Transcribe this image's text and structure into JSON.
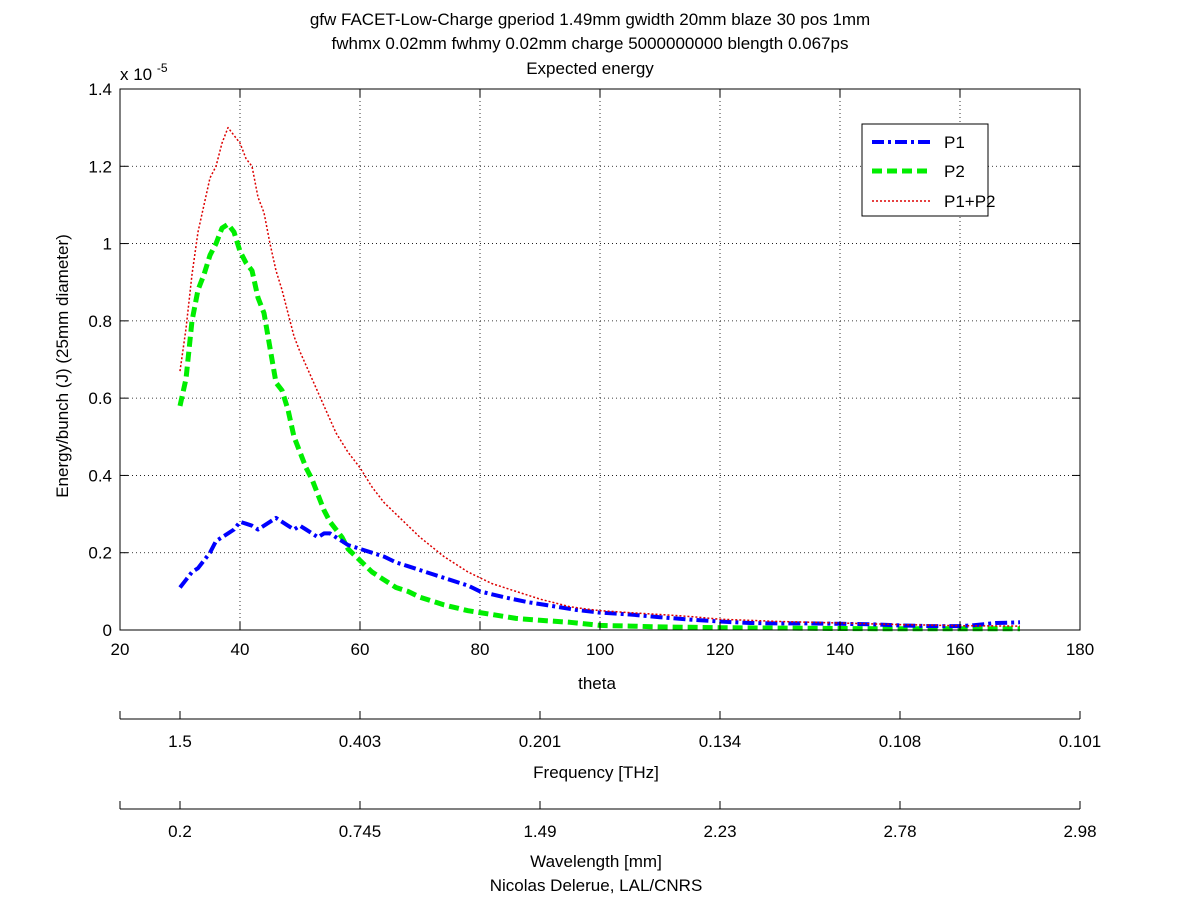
{
  "chart_data": {
    "type": "line",
    "title_lines": [
      "gfw FACET-Low-Charge gperiod 1.49mm gwidth 20mm blaze 30 pos 1mm",
      "fwhmx 0.02mm fwhmy 0.02mm charge 5000000000 blength 0.067ps",
      "Expected energy"
    ],
    "xlabel": "theta",
    "ylabel": "Energy/bunch (J) (25mm diameter)",
    "y_multiplier": {
      "base": "x 10",
      "exponent": "-5"
    },
    "xlim": [
      20,
      180
    ],
    "ylim": [
      0,
      1.4
    ],
    "x_ticks": [
      "20",
      "40",
      "60",
      "80",
      "100",
      "120",
      "140",
      "160",
      "180"
    ],
    "y_ticks": [
      "0",
      "0.2",
      "0.4",
      "0.6",
      "0.8",
      "1",
      "1.2",
      "1.4"
    ],
    "grid": true,
    "legend_position": "top-right",
    "series": [
      {
        "name": "P1",
        "color": "#0000ff",
        "style": "dashdot",
        "x": [
          30,
          31,
          32,
          33,
          34,
          35,
          36,
          37,
          38,
          39,
          40,
          41,
          42,
          43,
          44,
          45,
          46,
          47,
          48,
          49,
          50,
          51,
          52,
          53,
          54,
          55,
          56,
          57,
          58,
          59,
          60,
          62,
          64,
          66,
          68,
          70,
          72,
          75,
          78,
          80,
          84,
          88,
          92,
          96,
          100,
          105,
          110,
          115,
          120,
          125,
          130,
          135,
          140,
          145,
          150,
          155,
          160,
          162,
          164,
          166,
          168,
          170
        ],
        "y": [
          0.11,
          0.13,
          0.15,
          0.16,
          0.18,
          0.2,
          0.23,
          0.24,
          0.25,
          0.26,
          0.28,
          0.275,
          0.27,
          0.26,
          0.27,
          0.28,
          0.29,
          0.28,
          0.27,
          0.26,
          0.27,
          0.26,
          0.25,
          0.24,
          0.25,
          0.25,
          0.24,
          0.23,
          0.22,
          0.215,
          0.21,
          0.2,
          0.19,
          0.175,
          0.165,
          0.155,
          0.145,
          0.13,
          0.115,
          0.1,
          0.085,
          0.072,
          0.062,
          0.052,
          0.045,
          0.04,
          0.033,
          0.027,
          0.022,
          0.018,
          0.017,
          0.017,
          0.016,
          0.015,
          0.012,
          0.01,
          0.01,
          0.012,
          0.015,
          0.018,
          0.019,
          0.02
        ]
      },
      {
        "name": "P2",
        "color": "#00ee00",
        "style": "dashed",
        "x": [
          30,
          31,
          32,
          33,
          34,
          35,
          36,
          37,
          38,
          39,
          40,
          41,
          42,
          43,
          44,
          45,
          46,
          47,
          48,
          49,
          50,
          51,
          52,
          53,
          54,
          55,
          56,
          57,
          58,
          60,
          62,
          64,
          66,
          68,
          70,
          74,
          78,
          82,
          86,
          90,
          95,
          100,
          105,
          110,
          115,
          120,
          130,
          140,
          150,
          160,
          170
        ],
        "y": [
          0.58,
          0.65,
          0.8,
          0.88,
          0.92,
          0.97,
          1.0,
          1.04,
          1.05,
          1.03,
          0.98,
          0.95,
          0.93,
          0.86,
          0.82,
          0.73,
          0.64,
          0.62,
          0.57,
          0.5,
          0.46,
          0.42,
          0.39,
          0.35,
          0.31,
          0.28,
          0.26,
          0.24,
          0.21,
          0.18,
          0.15,
          0.13,
          0.11,
          0.1,
          0.085,
          0.065,
          0.05,
          0.04,
          0.03,
          0.025,
          0.02,
          0.012,
          0.01,
          0.008,
          0.007,
          0.006,
          0.005,
          0.004,
          0.003,
          0.003,
          0.003
        ]
      },
      {
        "name": "P1+P2",
        "color": "#dd0000",
        "style": "dotted",
        "x": [
          30,
          31,
          32,
          33,
          34,
          35,
          36,
          37,
          38,
          39,
          40,
          41,
          42,
          43,
          44,
          45,
          46,
          47,
          48,
          49,
          50,
          52,
          54,
          56,
          58,
          60,
          62,
          64,
          66,
          68,
          70,
          74,
          78,
          82,
          86,
          90,
          95,
          100,
          105,
          110,
          115,
          120,
          130,
          140,
          150,
          160,
          170
        ],
        "y": [
          0.67,
          0.78,
          0.92,
          1.03,
          1.1,
          1.17,
          1.2,
          1.26,
          1.3,
          1.28,
          1.26,
          1.22,
          1.2,
          1.12,
          1.08,
          1.0,
          0.93,
          0.88,
          0.82,
          0.76,
          0.72,
          0.65,
          0.58,
          0.51,
          0.46,
          0.42,
          0.37,
          0.33,
          0.3,
          0.27,
          0.24,
          0.19,
          0.15,
          0.12,
          0.1,
          0.08,
          0.06,
          0.05,
          0.045,
          0.04,
          0.035,
          0.028,
          0.022,
          0.018,
          0.014,
          0.011,
          0.01
        ]
      }
    ],
    "secondary_axes": [
      {
        "label": "Frequency [THz]",
        "tick_labels": [
          "1.5",
          "0.403",
          "0.201",
          "0.134",
          "0.108",
          "0.101"
        ],
        "tick_theta": [
          30,
          60,
          90,
          120,
          150,
          180
        ]
      },
      {
        "label": "Wavelength [mm]",
        "tick_labels": [
          "0.2",
          "0.745",
          "1.49",
          "2.23",
          "2.78",
          "2.98"
        ],
        "tick_theta": [
          30,
          60,
          90,
          120,
          150,
          180
        ]
      }
    ],
    "credit": "Nicolas Delerue, LAL/CNRS"
  }
}
